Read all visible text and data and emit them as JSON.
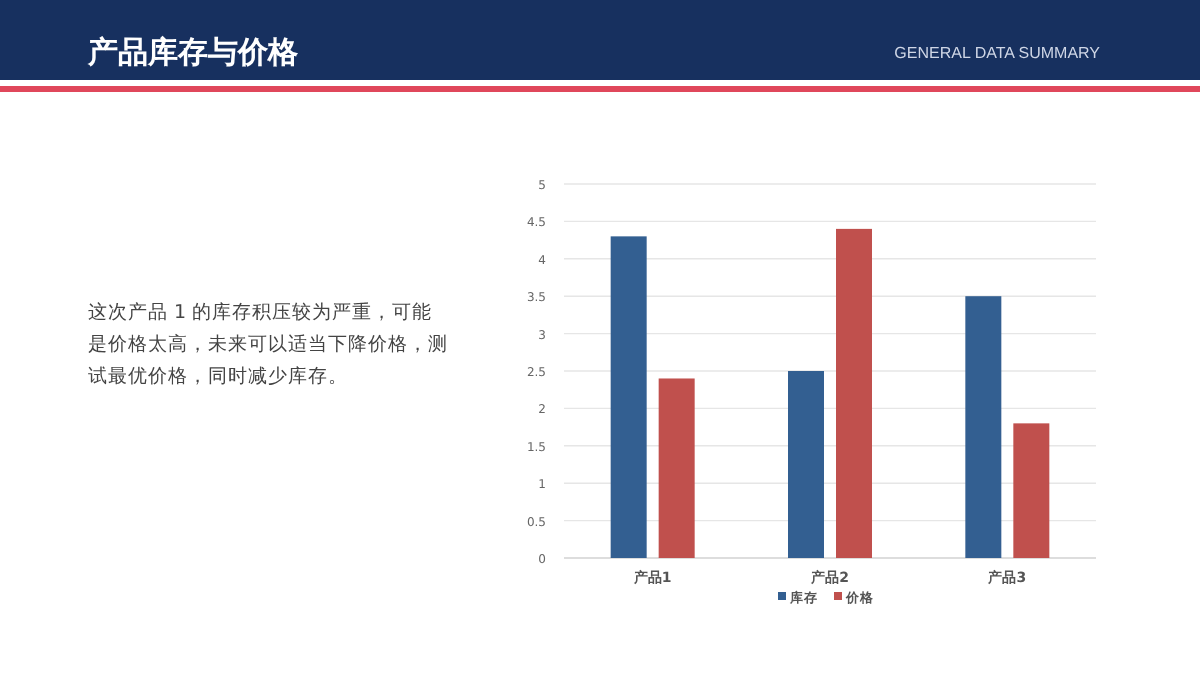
{
  "chart_data": {
    "type": "bar",
    "title": "产品库存与价格",
    "subtitle": "GENERAL DATA SUMMARY",
    "annotations": [
      "这次产品 1 的库存积压较为严重，可能是价格太高，未来可以适当下降价格，测试最优价格，同时减少库存。"
    ],
    "categories": [
      "产品1",
      "产品2",
      "产品3"
    ],
    "series": [
      {
        "name": "库存",
        "color": "#335f91",
        "values": [
          4.3,
          2.5,
          3.5
        ]
      },
      {
        "name": "价格",
        "color": "#c0504d",
        "values": [
          2.4,
          4.4,
          1.8
        ]
      }
    ],
    "ylim": [
      0,
      5
    ],
    "yticks": [
      0,
      0.5,
      1,
      1.5,
      2,
      2.5,
      3,
      3.5,
      4,
      4.5,
      5
    ],
    "grid": "y",
    "legend": "bottom"
  }
}
